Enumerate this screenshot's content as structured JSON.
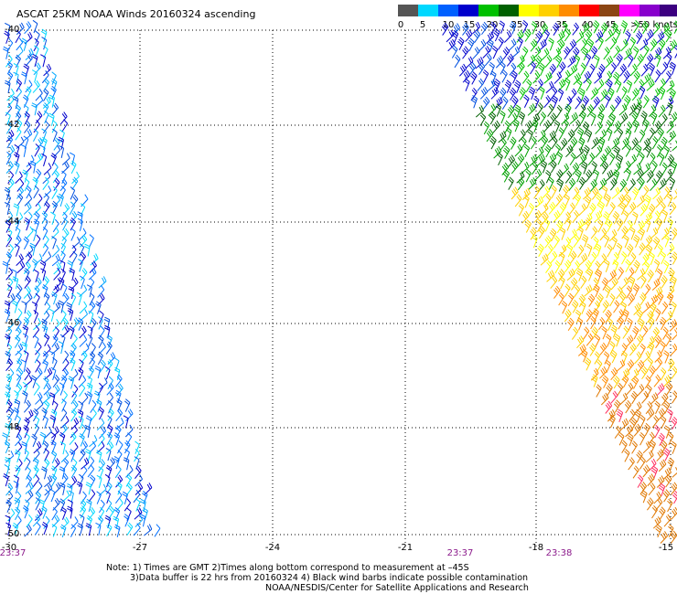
{
  "title": "ASCAT 25KM NOAA Winds 20160324 ascending",
  "legend": {
    "colors": [
      "#555555",
      "#00d8ff",
      "#0060ff",
      "#0000cc",
      "#00c000",
      "#006000",
      "#ffff00",
      "#ffd000",
      "#ff8c00",
      "#ff0000",
      "#8b4513",
      "#ff00ff",
      "#8800cc",
      "#3c0080"
    ],
    "labels": [
      "0",
      "5",
      "10",
      "15",
      "20",
      "25",
      "30",
      "35",
      "40",
      "45",
      ">50 knots"
    ]
  },
  "latitudes": [
    "-40",
    "-42",
    "-44",
    "-46",
    "-48",
    "-50"
  ],
  "longitudes": [
    "-27",
    "-24",
    "-21",
    "-18",
    "-15"
  ],
  "longitude_start": "-30",
  "times": [
    "23:37",
    "23:37",
    "23:38"
  ],
  "notes": {
    "line1": "Note: 1) Times are GMT 2)Times along bottom correspond to measurement at –45S",
    "line2": "3)Data buffer is 22 hrs from 20160324 4) Black wind barbs indicate possible contamination",
    "line3": "NOAA/NESDIS/Center for Satellite Applications and Research"
  }
}
